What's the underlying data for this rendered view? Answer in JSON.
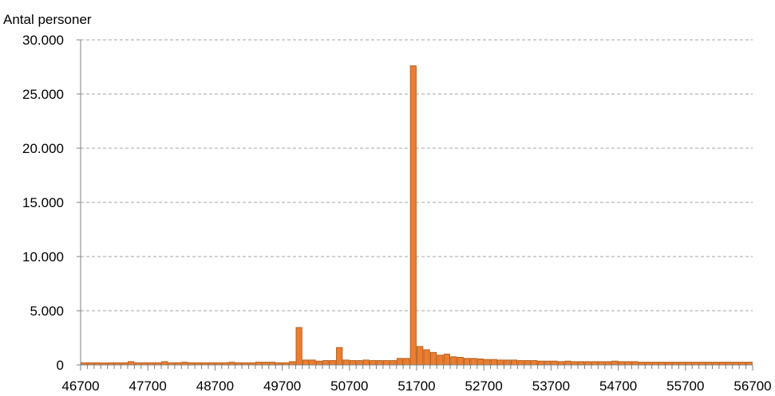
{
  "chart_data": {
    "type": "bar",
    "title": "",
    "ylabel": "Antal personer",
    "xlabel": "",
    "ylim": [
      0,
      30000
    ],
    "grid": true,
    "grid_style": "dashed",
    "legend": "none",
    "bar_color": "#ED7D31",
    "bar_edge_color": "#B65F1A",
    "y_ticks": [
      "0",
      "5.000",
      "10.000",
      "15.000",
      "20.000",
      "25.000",
      "30.000"
    ],
    "y_tick_values": [
      0,
      5000,
      10000,
      15000,
      20000,
      25000,
      30000
    ],
    "x_tick_labels": [
      "46700",
      "47700",
      "48700",
      "49700",
      "50700",
      "51700",
      "52700",
      "53700",
      "54700",
      "55700",
      "56700"
    ],
    "x_start": 46700,
    "x_step": 100,
    "values": [
      200,
      200,
      200,
      180,
      200,
      200,
      200,
      300,
      200,
      200,
      200,
      200,
      300,
      200,
      200,
      250,
      200,
      200,
      200,
      200,
      200,
      200,
      250,
      200,
      200,
      200,
      250,
      250,
      250,
      200,
      200,
      300,
      3450,
      450,
      450,
      350,
      400,
      400,
      1600,
      450,
      400,
      400,
      450,
      400,
      400,
      400,
      400,
      600,
      600,
      27600,
      1700,
      1400,
      1150,
      900,
      1000,
      750,
      700,
      600,
      600,
      550,
      500,
      500,
      450,
      450,
      450,
      400,
      400,
      400,
      350,
      350,
      350,
      300,
      350,
      300,
      300,
      300,
      300,
      300,
      300,
      350,
      300,
      300,
      300,
      250,
      250,
      250,
      250,
      250,
      250,
      250,
      250,
      250,
      250,
      250,
      250,
      250,
      250,
      250,
      250,
      250
    ]
  }
}
